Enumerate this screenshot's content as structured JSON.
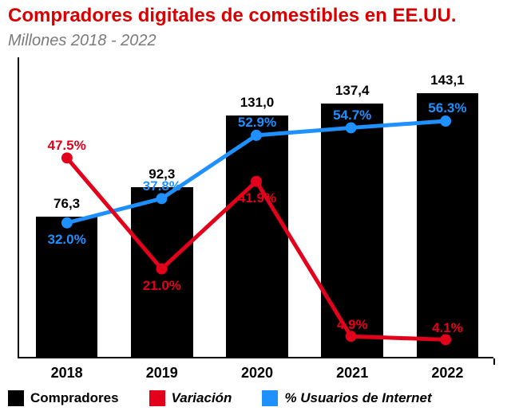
{
  "title": "Compradores digitales de comestibles en EE.UU.",
  "subtitle": "Millones 2018 - 2022",
  "title_color": "#d80000",
  "title_fontsize": 24,
  "subtitle_color": "#7a7a7a",
  "subtitle_fontsize": 20,
  "background_color": "#ffffff",
  "axis_color": "#000000",
  "chart": {
    "type": "bar+line",
    "categories": [
      "2018",
      "2019",
      "2020",
      "2021",
      "2022"
    ],
    "bars": {
      "values": [
        76.3,
        92.3,
        131.0,
        137.4,
        143.1
      ],
      "labels": [
        "76,3",
        "92,3",
        "131,0",
        "137,4",
        "143,1"
      ],
      "color": "#000000",
      "value_label_fontsize": 17,
      "value_label_color": "#000000",
      "bar_width_ratio": 0.65,
      "y_max": 160
    },
    "line_variacion": {
      "values": [
        47.5,
        21.0,
        41.9,
        4.9,
        4.1
      ],
      "labels": [
        "47.5%",
        "21.0%",
        "41.9%",
        "4.9%",
        "4.1%"
      ],
      "label_pos": [
        "above",
        "below",
        "below",
        "above",
        "above"
      ],
      "color": "#e2001a",
      "line_width": 5,
      "marker_size": 7,
      "label_fontsize": 17,
      "y_max": 70
    },
    "line_usuarios": {
      "values": [
        32.0,
        37.8,
        52.9,
        54.7,
        56.3
      ],
      "labels": [
        "32.0%",
        "37.8%",
        "52.9%",
        "54.7%",
        "56.3%"
      ],
      "label_pos": [
        "below",
        "above",
        "above",
        "above",
        "above"
      ],
      "color": "#1e90ff",
      "line_width": 5,
      "marker_size": 7,
      "label_fontsize": 17,
      "y_max": 70
    },
    "xaxis_label_fontsize": 18,
    "xaxis_label_color": "#000000"
  },
  "legend": {
    "items": [
      {
        "label": "Compradores",
        "color": "#000000",
        "italic": false
      },
      {
        "label": "Variación",
        "color": "#e2001a",
        "italic": true
      },
      {
        "label": "% Usuarios de Internet",
        "color": "#1e90ff",
        "italic": true
      }
    ],
    "fontsize": 17
  }
}
